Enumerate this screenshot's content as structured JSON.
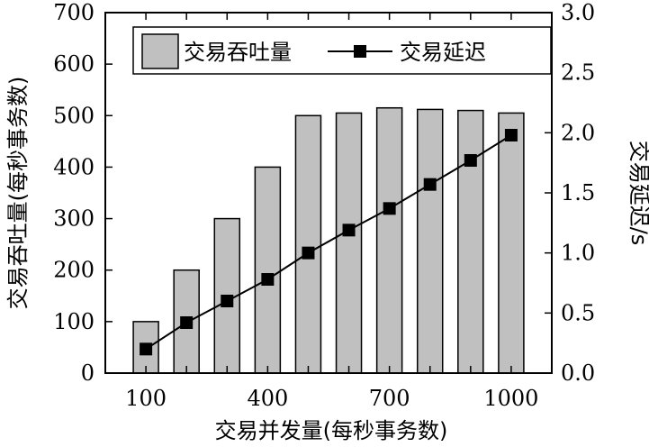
{
  "chart_data": {
    "type": "bar",
    "categories": [
      "100",
      "200",
      "300",
      "400",
      "500",
      "600",
      "700",
      "800",
      "900",
      "1000"
    ],
    "x_tick_labels": [
      "100",
      "400",
      "700",
      "1000"
    ],
    "series": [
      {
        "name": "交易吞吐量",
        "type": "bar",
        "axis": "left",
        "values": [
          100,
          200,
          300,
          400,
          500,
          505,
          515,
          512,
          510,
          505
        ],
        "color": "#c0c0c0"
      },
      {
        "name": "交易延迟",
        "type": "line",
        "axis": "right",
        "values": [
          0.2,
          0.42,
          0.6,
          0.78,
          1.0,
          1.19,
          1.37,
          1.57,
          1.77,
          1.98
        ],
        "color": "#000000",
        "marker": "square"
      }
    ],
    "xlabel": "交易并发量(每秒事务数)",
    "ylabel": "交易吞吐量(每秒事务数)",
    "y2label": "交易延迟/s",
    "ylim": [
      0,
      700
    ],
    "y2lim": [
      0,
      3.0
    ],
    "y_ticks": [
      "0",
      "100",
      "200",
      "300",
      "400",
      "500",
      "600",
      "700"
    ],
    "y2_ticks": [
      "0.0",
      "0.5",
      "1.0",
      "1.5",
      "2.0",
      "2.5",
      "3.0"
    ],
    "legend": "top-right",
    "grid": false
  }
}
